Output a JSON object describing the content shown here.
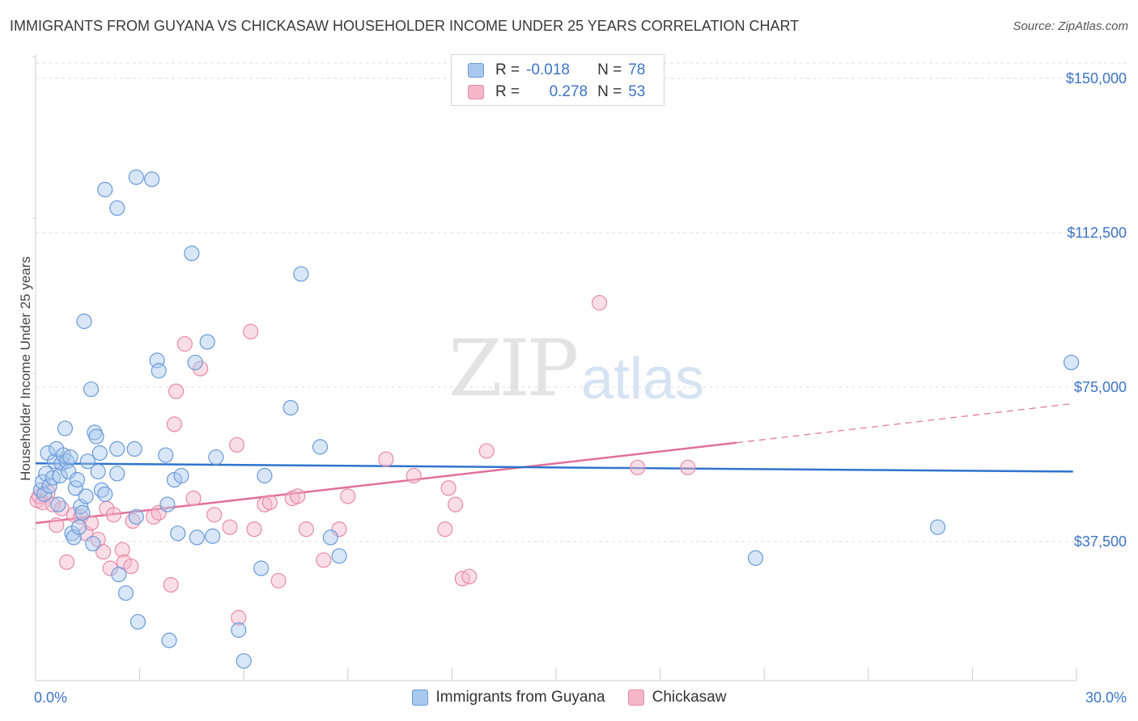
{
  "title": "IMMIGRANTS FROM GUYANA VS CHICKASAW HOUSEHOLDER INCOME UNDER 25 YEARS CORRELATION CHART",
  "source": "Source: ZipAtlas.com",
  "watermark": {
    "zip": "ZIP",
    "atlas": "atlas"
  },
  "legend": {
    "r_label": "R =",
    "n_label": "N =",
    "rows": [
      {
        "r": "-0.018",
        "n": "78"
      },
      {
        "r": "0.278",
        "n": "53"
      }
    ]
  },
  "colors": {
    "blue_fill": "#a9c8ee",
    "blue_stroke": "#6a9ad8",
    "blue_line": "#2f74cc",
    "pink_fill": "#f5b6c9",
    "pink_stroke": "#e88aa8",
    "pink_line": "#e0709a",
    "axis_text": "#3d74c6"
  },
  "chart_data": {
    "type": "scatter",
    "title": "IMMIGRANTS FROM GUYANA VS CHICKASAW HOUSEHOLDER INCOME UNDER 25 YEARS CORRELATION CHART",
    "xlabel": "",
    "ylabel": "Householder Income Under 25 years",
    "xlim": [
      0,
      30
    ],
    "ylim": [
      0,
      155000
    ],
    "x_tick_labels": [
      "0.0%",
      "30.0%"
    ],
    "y_ticks": [
      37500,
      75000,
      112500,
      150000
    ],
    "y_tick_labels": [
      "$37,500",
      "$75,000",
      "$112,500",
      "$150,000"
    ],
    "grid": true,
    "legend_position": "top-center",
    "series": [
      {
        "name": "Immigrants from Guyana",
        "trend": {
          "x": [
            0,
            29.9
          ],
          "y": [
            56500,
            54500
          ]
        },
        "points": [
          [
            0.15,
            50000
          ],
          [
            0.2,
            52000
          ],
          [
            0.25,
            49000
          ],
          [
            0.3,
            54000
          ],
          [
            0.35,
            59000
          ],
          [
            0.4,
            51000
          ],
          [
            0.5,
            53000
          ],
          [
            0.55,
            57000
          ],
          [
            0.6,
            60000
          ],
          [
            0.65,
            46500
          ],
          [
            0.7,
            53500
          ],
          [
            0.75,
            56500
          ],
          [
            0.8,
            58500
          ],
          [
            0.85,
            65000
          ],
          [
            0.9,
            57000
          ],
          [
            0.95,
            54500
          ],
          [
            1.0,
            58000
          ],
          [
            1.05,
            39500
          ],
          [
            1.1,
            38500
          ],
          [
            1.15,
            50500
          ],
          [
            1.2,
            52500
          ],
          [
            1.25,
            41000
          ],
          [
            1.3,
            46000
          ],
          [
            1.35,
            44500
          ],
          [
            1.4,
            91000
          ],
          [
            1.45,
            48500
          ],
          [
            1.5,
            57000
          ],
          [
            1.6,
            74500
          ],
          [
            1.65,
            37000
          ],
          [
            1.7,
            64000
          ],
          [
            1.75,
            63000
          ],
          [
            1.8,
            54500
          ],
          [
            1.85,
            59000
          ],
          [
            1.9,
            50000
          ],
          [
            2.0,
            49000
          ],
          [
            2.0,
            123000
          ],
          [
            2.35,
            118500
          ],
          [
            2.35,
            60000
          ],
          [
            2.35,
            54000
          ],
          [
            2.4,
            29500
          ],
          [
            2.6,
            25000
          ],
          [
            2.85,
            60000
          ],
          [
            2.9,
            43500
          ],
          [
            2.95,
            18000
          ],
          [
            2.9,
            126000
          ],
          [
            3.35,
            125500
          ],
          [
            3.5,
            81500
          ],
          [
            3.55,
            79000
          ],
          [
            3.75,
            58500
          ],
          [
            3.8,
            46500
          ],
          [
            3.85,
            13500
          ],
          [
            4.0,
            52500
          ],
          [
            4.1,
            39500
          ],
          [
            4.2,
            53500
          ],
          [
            4.5,
            107500
          ],
          [
            4.6,
            81000
          ],
          [
            4.65,
            38500
          ],
          [
            4.95,
            86000
          ],
          [
            5.1,
            38800
          ],
          [
            5.2,
            58000
          ],
          [
            5.85,
            16000
          ],
          [
            6.0,
            8500
          ],
          [
            6.5,
            31000
          ],
          [
            6.6,
            53500
          ],
          [
            7.35,
            70000
          ],
          [
            7.65,
            102500
          ],
          [
            8.2,
            60500
          ],
          [
            8.5,
            38500
          ],
          [
            8.75,
            34000
          ],
          [
            20.75,
            33500
          ],
          [
            26.0,
            41000
          ],
          [
            29.85,
            81000
          ]
        ]
      },
      {
        "name": "Chickasaw",
        "trend": {
          "x": [
            0,
            20.2
          ],
          "y": [
            42000,
            61500
          ]
        },
        "trend_dashed": {
          "x": [
            20.2,
            29.9
          ],
          "y": [
            61500,
            71000
          ]
        },
        "points": [
          [
            0.05,
            47500
          ],
          [
            0.1,
            48500
          ],
          [
            0.2,
            47000
          ],
          [
            0.35,
            49500
          ],
          [
            0.5,
            46500
          ],
          [
            0.6,
            41500
          ],
          [
            0.75,
            45500
          ],
          [
            0.9,
            32500
          ],
          [
            1.1,
            44000
          ],
          [
            1.3,
            43500
          ],
          [
            1.45,
            39500
          ],
          [
            1.6,
            42000
          ],
          [
            1.8,
            38000
          ],
          [
            1.95,
            35000
          ],
          [
            2.05,
            45500
          ],
          [
            2.15,
            31000
          ],
          [
            2.25,
            44000
          ],
          [
            2.5,
            35500
          ],
          [
            2.55,
            32500
          ],
          [
            2.75,
            31500
          ],
          [
            2.8,
            42500
          ],
          [
            3.4,
            43500
          ],
          [
            3.55,
            44500
          ],
          [
            3.9,
            27000
          ],
          [
            4.0,
            66000
          ],
          [
            4.05,
            74000
          ],
          [
            4.3,
            85500
          ],
          [
            4.55,
            48000
          ],
          [
            4.75,
            79500
          ],
          [
            5.15,
            44000
          ],
          [
            5.6,
            41000
          ],
          [
            5.8,
            61000
          ],
          [
            5.85,
            19000
          ],
          [
            6.2,
            88500
          ],
          [
            6.3,
            40500
          ],
          [
            6.6,
            46500
          ],
          [
            6.75,
            47000
          ],
          [
            7.0,
            28000
          ],
          [
            7.4,
            48000
          ],
          [
            7.55,
            48500
          ],
          [
            7.8,
            40500
          ],
          [
            8.3,
            33000
          ],
          [
            8.75,
            40500
          ],
          [
            9.0,
            48500
          ],
          [
            10.1,
            57500
          ],
          [
            10.9,
            53500
          ],
          [
            11.8,
            40500
          ],
          [
            11.9,
            50500
          ],
          [
            12.1,
            46500
          ],
          [
            12.3,
            28500
          ],
          [
            12.5,
            29000
          ],
          [
            13.0,
            59500
          ],
          [
            16.25,
            95500
          ],
          [
            17.35,
            55500
          ],
          [
            18.8,
            55500
          ]
        ]
      }
    ]
  }
}
